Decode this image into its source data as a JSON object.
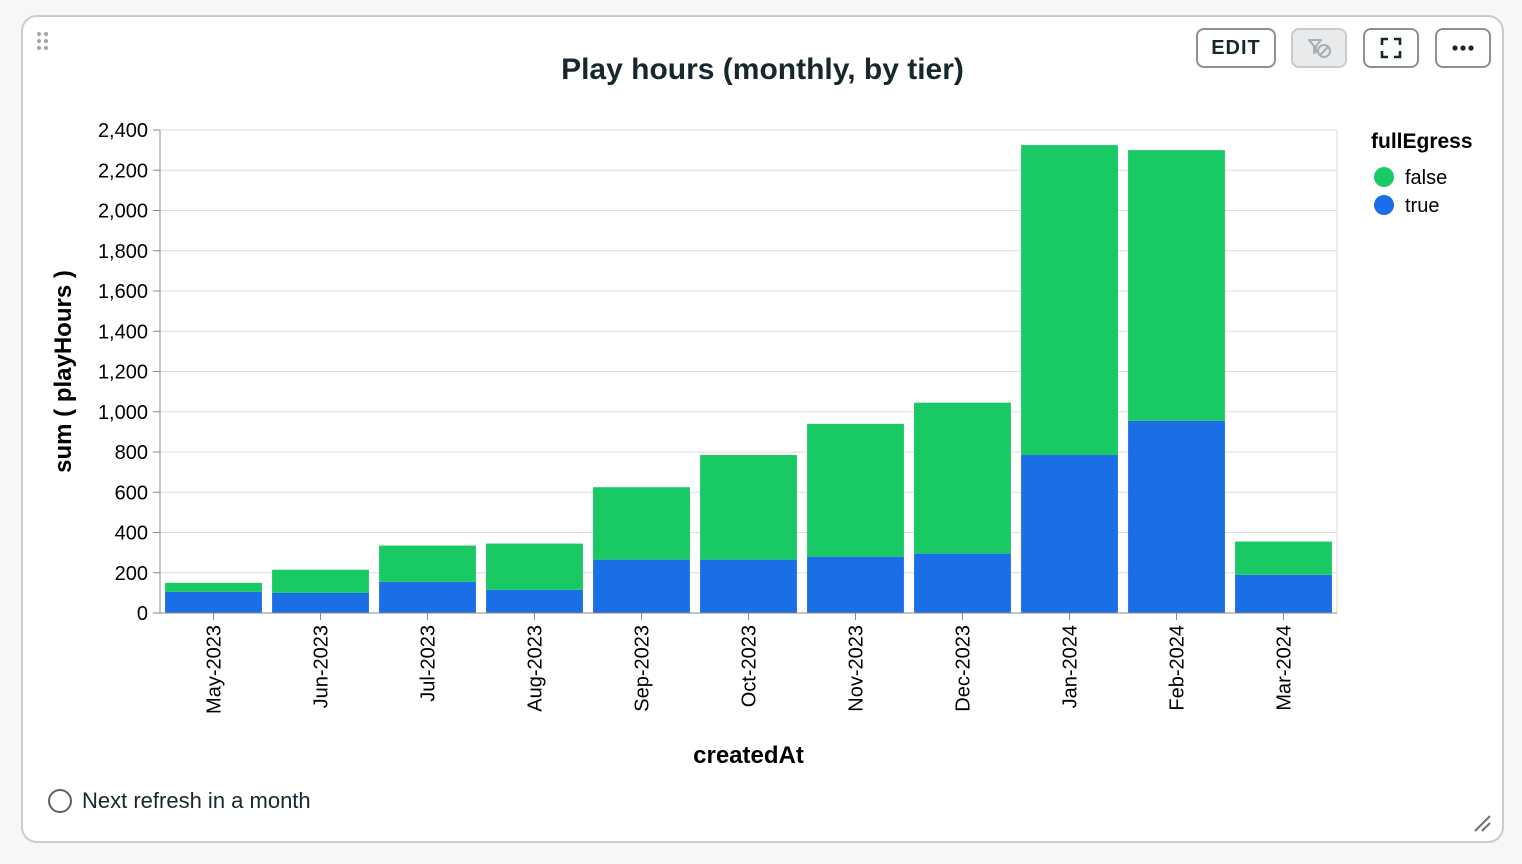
{
  "card": {
    "title": "Play hours (monthly, by tier)",
    "toolbar": {
      "edit_label": "EDIT",
      "filter_icon": "filter-off-icon",
      "expand_icon": "fullscreen-icon",
      "more_label": "•••"
    },
    "footer": {
      "refresh_text": "Next refresh in a month"
    }
  },
  "chart_data": {
    "type": "bar",
    "stacked": true,
    "xlabel": "createdAt",
    "ylabel": "sum ( playHours )",
    "ylim": [
      0,
      2400
    ],
    "yticks": [
      0,
      200,
      400,
      600,
      800,
      1000,
      1200,
      1400,
      1600,
      1800,
      2000,
      2200,
      2400
    ],
    "grid": true,
    "legend": {
      "title": "fullEgress",
      "position": "right"
    },
    "categories": [
      "May-2023",
      "Jun-2023",
      "Jul-2023",
      "Aug-2023",
      "Sep-2023",
      "Oct-2023",
      "Nov-2023",
      "Dec-2023",
      "Jan-2024",
      "Feb-2024",
      "Mar-2024"
    ],
    "series": [
      {
        "name": "true",
        "color": "#1a6ee6",
        "values": [
          105,
          100,
          155,
          115,
          265,
          265,
          280,
          295,
          785,
          955,
          190
        ]
      },
      {
        "name": "false",
        "color": "#19c963",
        "values": [
          45,
          115,
          180,
          230,
          360,
          520,
          660,
          750,
          1540,
          1345,
          165
        ]
      }
    ]
  }
}
